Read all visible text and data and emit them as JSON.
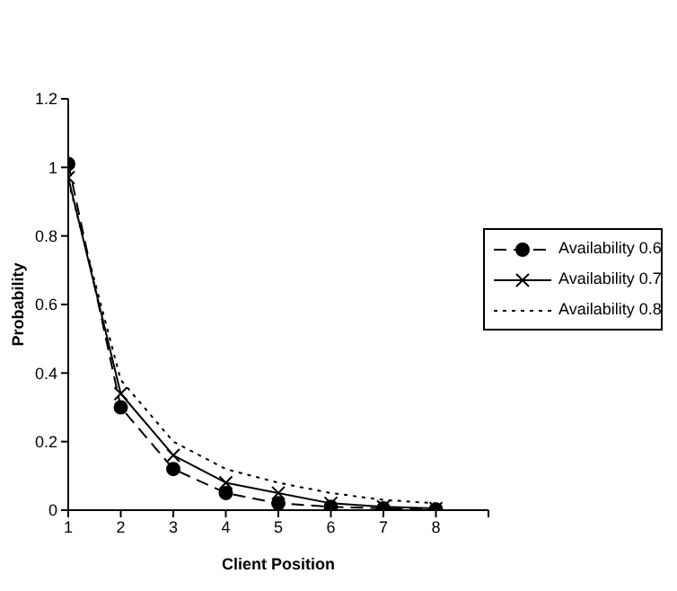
{
  "chart_data": {
    "type": "line",
    "xlabel": "Client Position",
    "ylabel": "Probability",
    "x": [
      1,
      2,
      3,
      4,
      5,
      6,
      7,
      8
    ],
    "xlim": [
      1,
      9
    ],
    "xticks": [
      1,
      2,
      3,
      4,
      5,
      6,
      7,
      8,
      {
        "value": 9,
        "label": null
      }
    ],
    "ylim": [
      0,
      1.2
    ],
    "yticks": [
      0,
      0.2,
      0.4,
      0.6,
      0.8,
      1,
      1.2
    ],
    "grid": false,
    "legend": "right",
    "series": [
      {
        "name": "Availability 0.6",
        "color": "#000000",
        "marker": "circle",
        "line_style": "dashed",
        "values": [
          1.01,
          0.3,
          0.12,
          0.05,
          0.02,
          0.01,
          0.005,
          0.002
        ]
      },
      {
        "name": "Availability 0.7",
        "color": "#000000",
        "marker": "cross",
        "line_style": "solid",
        "values": [
          0.97,
          0.34,
          0.16,
          0.08,
          0.05,
          0.02,
          0.01,
          0.005
        ]
      },
      {
        "name": "Availability 0.8",
        "color": "#000000",
        "marker": "none",
        "line_style": "dotted",
        "values": [
          0.96,
          0.38,
          0.2,
          0.12,
          0.08,
          0.05,
          0.03,
          0.02
        ]
      }
    ]
  }
}
